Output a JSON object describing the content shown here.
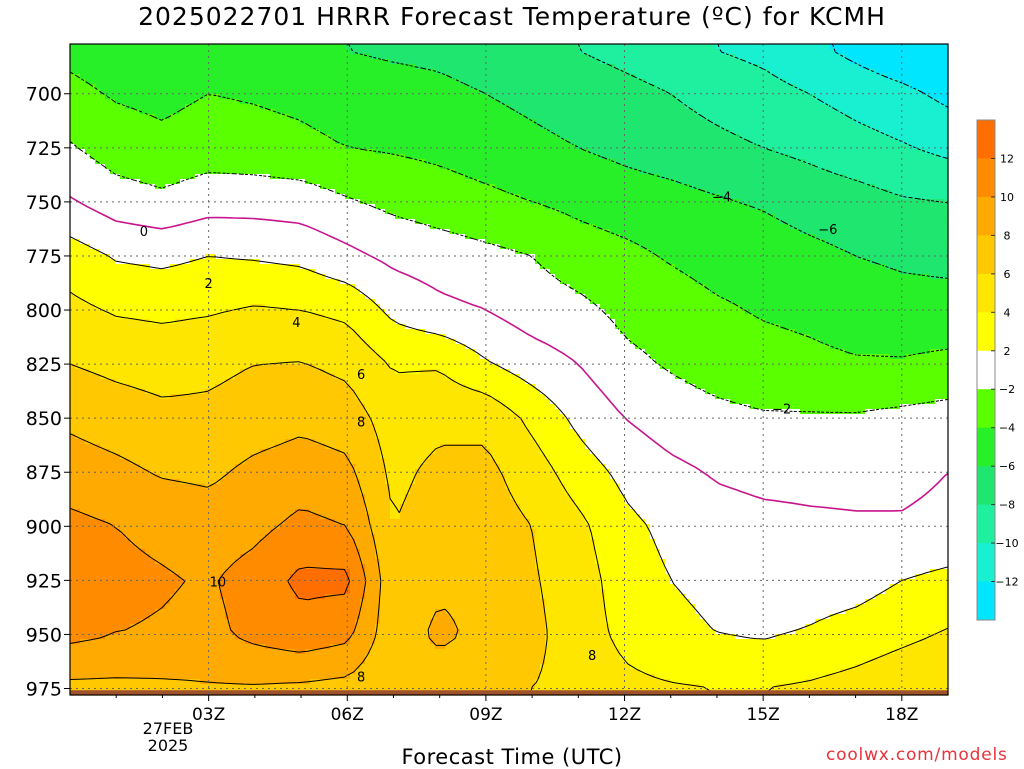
{
  "title": "2025022701 HRRR Forecast Temperature (ºC) for KCMH",
  "x_axis_label": "Forecast Time (UTC)",
  "credit": "coolwx.com/models",
  "run_day": [
    "27FEB",
    "2025"
  ],
  "colors": {
    "c_m14_m12": "#00e6ff",
    "c_m12_m10": "#19f0d2",
    "c_m10_m8": "#1ef0a0",
    "c_m8_m6": "#1ee66e",
    "c_m6_m4": "#28f028",
    "c_m4_m2": "#5aff00",
    "c_m2_2": "#ffffff",
    "c_2_4": "#ffff00",
    "c_4_6": "#ffe600",
    "c_6_8": "#ffc800",
    "c_8_10": "#ffaa00",
    "c_10_12": "#ff8c00",
    "c_12_14": "#ff6e00",
    "ground": "#a0522d",
    "freezing_line": "#c8148c"
  },
  "chart_data": {
    "type": "heatmap",
    "title": "2025022701 HRRR Forecast Temperature (ºC) for KCMH",
    "xlabel": "Forecast Time (UTC)",
    "ylabel": "",
    "x_tick_labels": [
      "03Z",
      "06Z",
      "09Z",
      "12Z",
      "15Z",
      "18Z"
    ],
    "x_ticks_hours": [
      3,
      6,
      9,
      12,
      15,
      18
    ],
    "xlim_hours": [
      0,
      19
    ],
    "y_tick_labels": [
      "700",
      "725",
      "750",
      "775",
      "800",
      "825",
      "850",
      "875",
      "900",
      "925",
      "950",
      "975"
    ],
    "y_ticks_hpa": [
      700,
      725,
      750,
      775,
      800,
      825,
      850,
      875,
      900,
      925,
      950,
      975
    ],
    "ylim_hpa": [
      677,
      978
    ],
    "y_inverted": true,
    "grid": true,
    "colorbar_levels_c": [
      -12,
      -10,
      -8,
      -6,
      -4,
      -2,
      2,
      4,
      6,
      8,
      10,
      12
    ],
    "colorbar_labels": [
      "12",
      "10",
      "8",
      "6",
      "4",
      "2",
      "−2",
      "−4",
      "−6",
      "−8",
      "−10",
      "−12"
    ],
    "levels_hpa": [
      680,
      700,
      725,
      750,
      775,
      800,
      825,
      850,
      875,
      900,
      925,
      950,
      975
    ],
    "hours": [
      0,
      1,
      2,
      3,
      4,
      5,
      6,
      7,
      8,
      9,
      10,
      11,
      12,
      13,
      14,
      15,
      16,
      17,
      18,
      19
    ],
    "temperature_c": [
      [
        -4.5,
        -5.0,
        -5.2,
        -4.8,
        -5.0,
        -5.5,
        -6.0,
        -6.3,
        -6.5,
        -7.0,
        -7.5,
        -8.0,
        -8.5,
        -9.0,
        -10.0,
        -10.5,
        -11.5,
        -12.5,
        -13.5,
        -14.0
      ],
      [
        -3.5,
        -4.2,
        -4.5,
        -4.0,
        -4.2,
        -4.5,
        -5.0,
        -5.2,
        -5.5,
        -6.0,
        -6.5,
        -7.0,
        -7.5,
        -8.0,
        -8.7,
        -9.3,
        -10.0,
        -10.8,
        -11.5,
        -12.5
      ],
      [
        -1.8,
        -3.0,
        -3.5,
        -3.0,
        -3.2,
        -3.5,
        -4.0,
        -4.2,
        -4.5,
        -5.0,
        -5.5,
        -6.0,
        -6.5,
        -7.0,
        -7.5,
        -8.0,
        -8.5,
        -9.2,
        -9.8,
        -10.5
      ],
      [
        0.2,
        -1.0,
        -1.5,
        -0.8,
        -0.8,
        -1.0,
        -1.8,
        -2.5,
        -3.0,
        -3.5,
        -4.0,
        -4.5,
        -5.0,
        -5.3,
        -5.8,
        -6.2,
        -6.8,
        -7.2,
        -7.8,
        -8.0
      ],
      [
        3.0,
        1.8,
        1.5,
        2.0,
        1.8,
        1.5,
        0.5,
        -0.5,
        -1.0,
        -1.5,
        -2.0,
        -3.0,
        -3.5,
        -4.2,
        -4.8,
        -5.0,
        -5.5,
        -6.0,
        -6.3,
        -6.5
      ],
      [
        4.5,
        3.8,
        3.6,
        3.8,
        4.2,
        4.0,
        3.5,
        1.5,
        0.5,
        0.0,
        -1.0,
        -1.5,
        -2.5,
        -3.0,
        -3.7,
        -4.2,
        -4.5,
        -5.0,
        -5.3,
        -5.3
      ],
      [
        6.0,
        5.5,
        5.2,
        5.5,
        6.0,
        6.1,
        5.5,
        3.8,
        3.8,
        2.2,
        1.0,
        0.0,
        -1.5,
        -2.2,
        -2.8,
        -3.2,
        -3.5,
        -3.8,
        -3.8,
        -3.5
      ],
      [
        7.6,
        7.0,
        6.5,
        6.5,
        7.0,
        7.5,
        7.0,
        5.0,
        5.5,
        5.5,
        3.5,
        1.5,
        0.0,
        -1.0,
        -1.5,
        -1.8,
        -1.8,
        -1.8,
        -1.5,
        -1.2
      ],
      [
        9.0,
        8.5,
        7.8,
        7.6,
        8.5,
        9.0,
        8.5,
        5.5,
        6.5,
        6.5,
        5.0,
        3.0,
        1.5,
        0.5,
        -0.2,
        -0.5,
        -0.5,
        -0.5,
        -0.5,
        0.0
      ],
      [
        10.5,
        10.0,
        9.5,
        9.0,
        9.5,
        10.5,
        10.0,
        6.0,
        7.0,
        7.0,
        6.0,
        4.5,
        2.5,
        1.5,
        0.8,
        0.5,
        0.3,
        0.2,
        0.2,
        0.5
      ],
      [
        11.2,
        10.5,
        10.2,
        9.8,
        10.8,
        12.5,
        12.5,
        6.3,
        7.5,
        7.5,
        6.2,
        5.0,
        3.0,
        2.0,
        1.5,
        1.0,
        1.0,
        1.2,
        2.0,
        2.5
      ],
      [
        10.5,
        10.0,
        9.8,
        9.5,
        10.5,
        11.2,
        10.5,
        6.5,
        8.6,
        7.2,
        6.5,
        5.0,
        3.5,
        2.5,
        2.0,
        1.8,
        2.2,
        2.8,
        3.5,
        4.2
      ],
      [
        7.5,
        7.5,
        7.6,
        7.8,
        7.8,
        7.6,
        7.3,
        6.1,
        6.3,
        6.2,
        6.0,
        5.5,
        4.5,
        4.2,
        4.0,
        4.0,
        4.3,
        4.8,
        5.5,
        6.0
      ]
    ],
    "contour_labels": [
      "0",
      "2",
      "4",
      "6",
      "8",
      "10",
      "8",
      "8",
      "−2",
      "−4",
      "−6"
    ]
  }
}
